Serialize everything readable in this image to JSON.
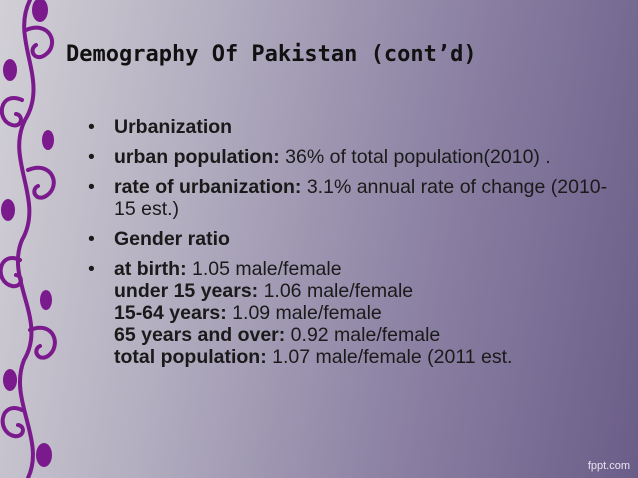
{
  "slide": {
    "title": "Demography Of Pakistan (cont’d)",
    "bullets": [
      {
        "label": "Urbanization",
        "text": ""
      },
      {
        "label": "urban population:",
        "text": " 36% of total population(2010) ."
      },
      {
        "label": " rate of urbanization:",
        "text": " 3.1% annual rate of change (2010-15 est.)"
      },
      {
        "label": "Gender ratio",
        "text": ""
      }
    ],
    "sex_ratio": [
      {
        "label": "at birth:",
        "text": " 1.05 male/female"
      },
      {
        "label": "under 15 years:",
        "text": " 1.06 male/female"
      },
      {
        "label": "15-64 years:",
        "text": " 1.09 male/female"
      },
      {
        "label": "65 years and over:",
        "text": " 0.92 male/female"
      },
      {
        "label": "total population:",
        "text": " 1.07 male/female (2011 est."
      }
    ],
    "footer": "fppt.com"
  },
  "colors": {
    "ornament": "#7a1a8c",
    "title": "#111111"
  }
}
